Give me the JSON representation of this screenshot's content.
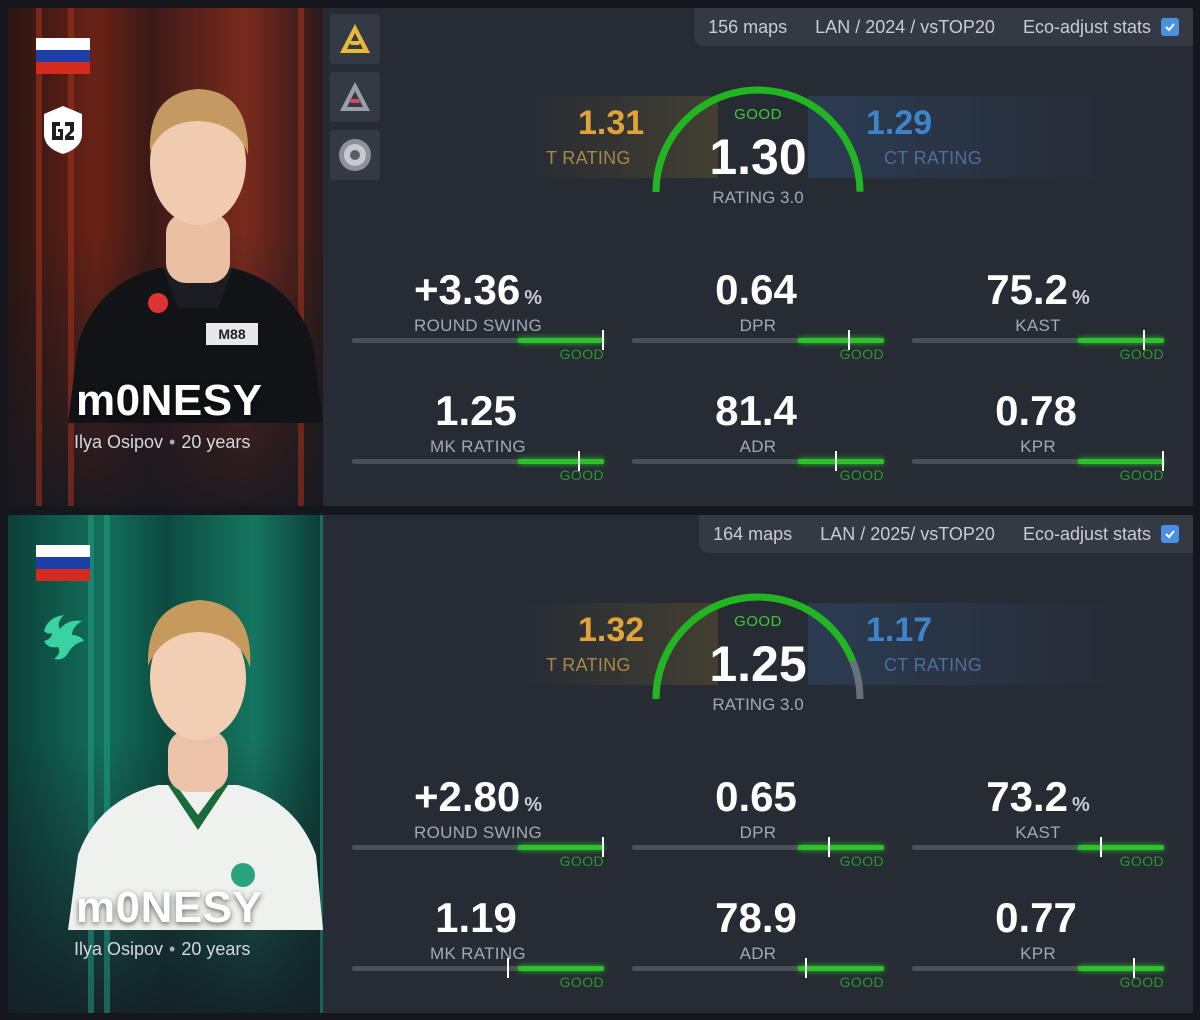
{
  "colors": {
    "good": "#2dc22d",
    "t_side": "#e2a43a",
    "ct_side": "#3e84c9"
  },
  "cards": [
    {
      "team_logo": "g2-logo",
      "flag": "russia-flag",
      "player": {
        "nickname": "m0NESY",
        "real_name": "Ilya Osipov",
        "age": "20 years"
      },
      "events": [
        "blast-event-badge",
        "blast-event-badge-silver",
        "major-event-badge"
      ],
      "filters": {
        "maps": "156 maps",
        "scope": "LAN / 2024 / vsTOP20",
        "eco_label": "Eco-adjust stats",
        "eco_checked": true
      },
      "rating": {
        "grade": "GOOD",
        "value": "1.30",
        "label": "RATING 3.0",
        "gauge_fill": 1.0
      },
      "t_side": {
        "value": "1.31",
        "label": "T RATING"
      },
      "ct_side": {
        "value": "1.29",
        "label": "CT RATING"
      },
      "stats": [
        {
          "value": "+3.36",
          "unit": "%",
          "label": "ROUND SWING",
          "grade": "GOOD",
          "marker": 1.0
        },
        {
          "value": "0.64",
          "unit": "",
          "label": "DPR",
          "grade": "GOOD",
          "marker": 0.86
        },
        {
          "value": "75.2",
          "unit": "%",
          "label": "KAST",
          "grade": "GOOD",
          "marker": 0.92
        },
        {
          "value": "1.25",
          "unit": "",
          "label": "MK RATING",
          "grade": "GOOD",
          "marker": 0.9
        },
        {
          "value": "81.4",
          "unit": "",
          "label": "ADR",
          "grade": "GOOD",
          "marker": 0.81
        },
        {
          "value": "0.78",
          "unit": "",
          "label": "KPR",
          "grade": "GOOD",
          "marker": 1.0
        }
      ]
    },
    {
      "team_logo": "falcons-logo",
      "flag": "russia-flag",
      "player": {
        "nickname": "m0NESY",
        "real_name": "Ilya Osipov",
        "age": "20 years"
      },
      "events": [],
      "filters": {
        "maps": "164 maps",
        "scope": "LAN / 2025/ vsTOP20",
        "eco_label": "Eco-adjust stats",
        "eco_checked": true
      },
      "rating": {
        "grade": "GOOD",
        "value": "1.25",
        "label": "RATING 3.0",
        "gauge_fill": 0.88
      },
      "t_side": {
        "value": "1.32",
        "label": "T RATING"
      },
      "ct_side": {
        "value": "1.17",
        "label": "CT RATING"
      },
      "stats": [
        {
          "value": "+2.80",
          "unit": "%",
          "label": "ROUND SWING",
          "grade": "GOOD",
          "marker": 1.0
        },
        {
          "value": "0.65",
          "unit": "",
          "label": "DPR",
          "grade": "GOOD",
          "marker": 0.78
        },
        {
          "value": "73.2",
          "unit": "%",
          "label": "KAST",
          "grade": "GOOD",
          "marker": 0.75
        },
        {
          "value": "1.19",
          "unit": "",
          "label": "MK RATING",
          "grade": "GOOD",
          "marker": 0.62
        },
        {
          "value": "78.9",
          "unit": "",
          "label": "ADR",
          "grade": "GOOD",
          "marker": 0.69
        },
        {
          "value": "0.77",
          "unit": "",
          "label": "KPR",
          "grade": "GOOD",
          "marker": 0.88
        }
      ]
    }
  ]
}
